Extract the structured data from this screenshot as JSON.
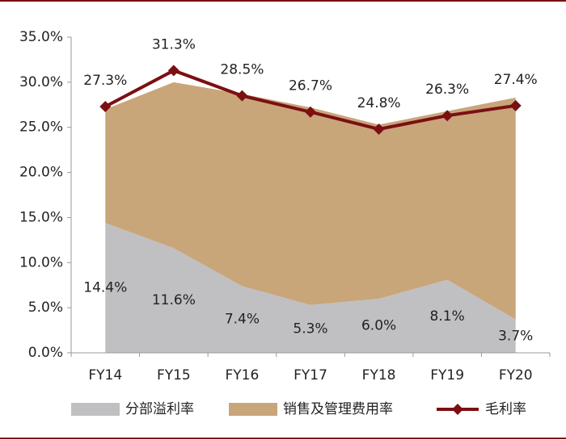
{
  "chart_data": {
    "type": "combo",
    "categories": [
      "FY14",
      "FY15",
      "FY16",
      "FY17",
      "FY18",
      "FY19",
      "FY20"
    ],
    "series": [
      {
        "name": "分部溢利率",
        "type": "area",
        "color": "#c0bfc2",
        "values": [
          14.4,
          11.6,
          7.4,
          5.3,
          6.0,
          8.1,
          3.7
        ],
        "value_labels": [
          "14.4%",
          "11.6%",
          "7.4%",
          "5.3%",
          "6.0%",
          "8.1%",
          "3.7%"
        ]
      },
      {
        "name": "销售及管理费用率",
        "type": "area",
        "color": "#c9a57a",
        "values": [
          12.6,
          18.4,
          21.3,
          21.9,
          19.3,
          18.7,
          24.6
        ]
      },
      {
        "name": "毛利率",
        "type": "line",
        "color": "#7b0f12",
        "values": [
          27.3,
          31.3,
          28.5,
          26.7,
          24.8,
          26.3,
          27.4
        ],
        "value_labels": [
          "27.3%",
          "31.3%",
          "28.5%",
          "26.7%",
          "24.8%",
          "26.3%",
          "27.4%"
        ]
      }
    ],
    "stacked": true,
    "ylim": [
      0,
      35
    ],
    "yticks": [
      {
        "value": 0,
        "label": "0.0%"
      },
      {
        "value": 5,
        "label": "5.0%"
      },
      {
        "value": 10,
        "label": "10.0%"
      },
      {
        "value": 15,
        "label": "15.0%"
      },
      {
        "value": 20,
        "label": "20.0%"
      },
      {
        "value": 25,
        "label": "25.0%"
      },
      {
        "value": 30,
        "label": "30.0%"
      },
      {
        "value": 35,
        "label": "35.0%"
      }
    ],
    "grid": false,
    "legend": "bottom"
  }
}
